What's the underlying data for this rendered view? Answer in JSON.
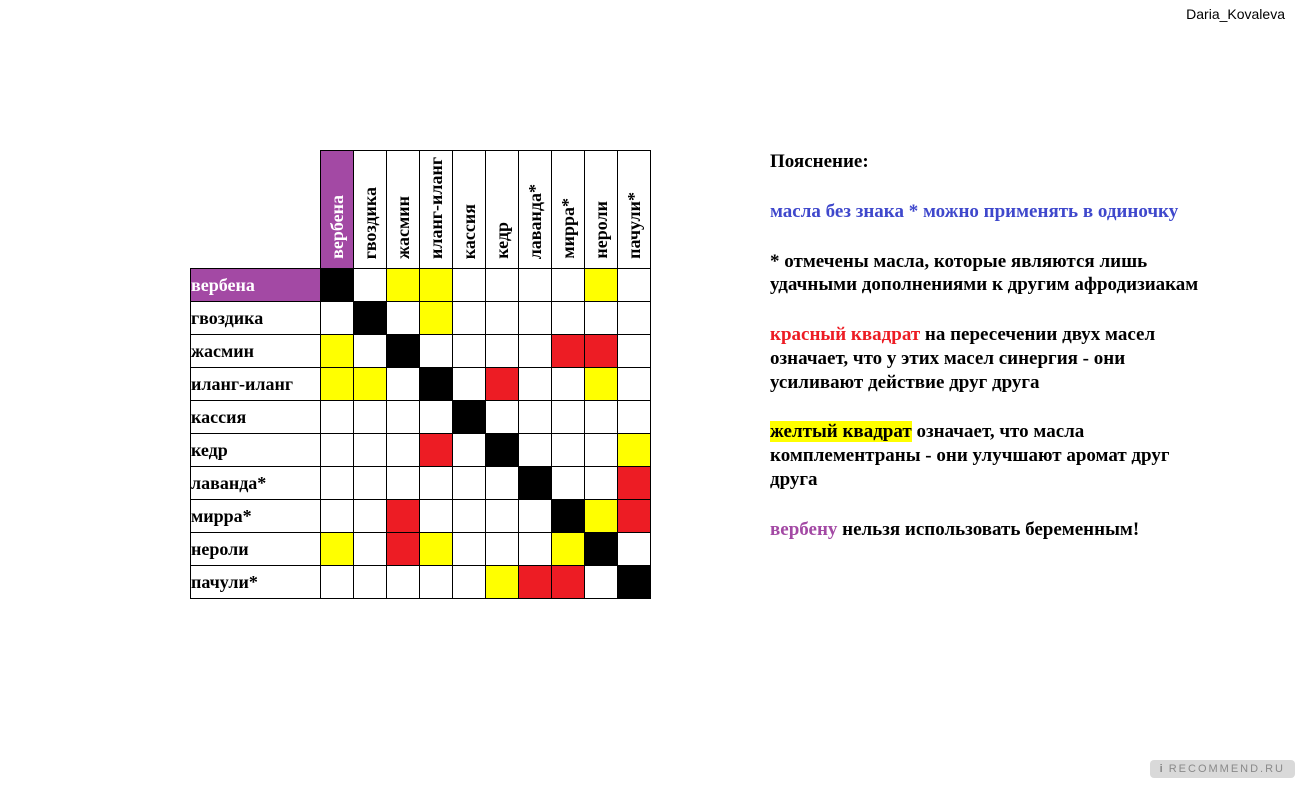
{
  "watermark_top": "Daria_Kovaleva",
  "watermark_bottom_i": "i",
  "watermark_bottom_text": "RECOMMEND.RU",
  "colors": {
    "purple": "#a349a4",
    "yellow": "#ffff00",
    "red": "#ed1c24",
    "black": "#000000",
    "white": "#ffffff",
    "blue_text": "#3f48cc",
    "red_text": "#ed1c24",
    "purple_text": "#a349a4"
  },
  "matrix": {
    "labels": [
      "вербена",
      "гвоздика",
      "жасмин",
      "иланг-иланг",
      "кассия",
      "кедр",
      "лаванда*",
      "мирра*",
      "нероли",
      "пачули*"
    ],
    "header_special_index": 0,
    "grid": [
      [
        "B",
        "",
        "Y",
        "Y",
        "",
        "",
        "",
        "",
        "Y",
        ""
      ],
      [
        "",
        "B",
        "",
        "Y",
        "",
        "",
        "",
        "",
        "",
        ""
      ],
      [
        "Y",
        "",
        "B",
        "",
        "",
        "",
        "",
        "R",
        "R",
        ""
      ],
      [
        "Y",
        "Y",
        "",
        "B",
        "",
        "R",
        "",
        "",
        "Y",
        ""
      ],
      [
        "",
        "",
        "",
        "",
        "B",
        "",
        "",
        "",
        "",
        ""
      ],
      [
        "",
        "",
        "",
        "R",
        "",
        "B",
        "",
        "",
        "",
        "Y"
      ],
      [
        "",
        "",
        "",
        "",
        "",
        "",
        "B",
        "",
        "",
        "R"
      ],
      [
        "",
        "",
        "R",
        "",
        "",
        "",
        "",
        "B",
        "Y",
        "R"
      ],
      [
        "Y",
        "",
        "R",
        "Y",
        "",
        "",
        "",
        "Y",
        "B",
        ""
      ],
      [
        "",
        "",
        "",
        "",
        "",
        "Y",
        "R",
        "R",
        "",
        "B"
      ]
    ]
  },
  "explain": {
    "title": "Пояснение:",
    "p1": "масла без знака * можно применять в одиночку",
    "p2": "* отмечены масла, которые являются лишь удачными дополнениями к другим афродизиакам",
    "p3_span1": "красный квадрат",
    "p3_rest": " на пересечении двух масел означает, что у этих масел синергия - они усиливают действие друг друга",
    "p4_span1": "желтый квадрат",
    "p4_rest": " означает, что масла комплементраны - они улучшают аромат друг друга",
    "p5_span1": "вербену",
    "p5_rest": " нельзя использовать беременным!"
  }
}
